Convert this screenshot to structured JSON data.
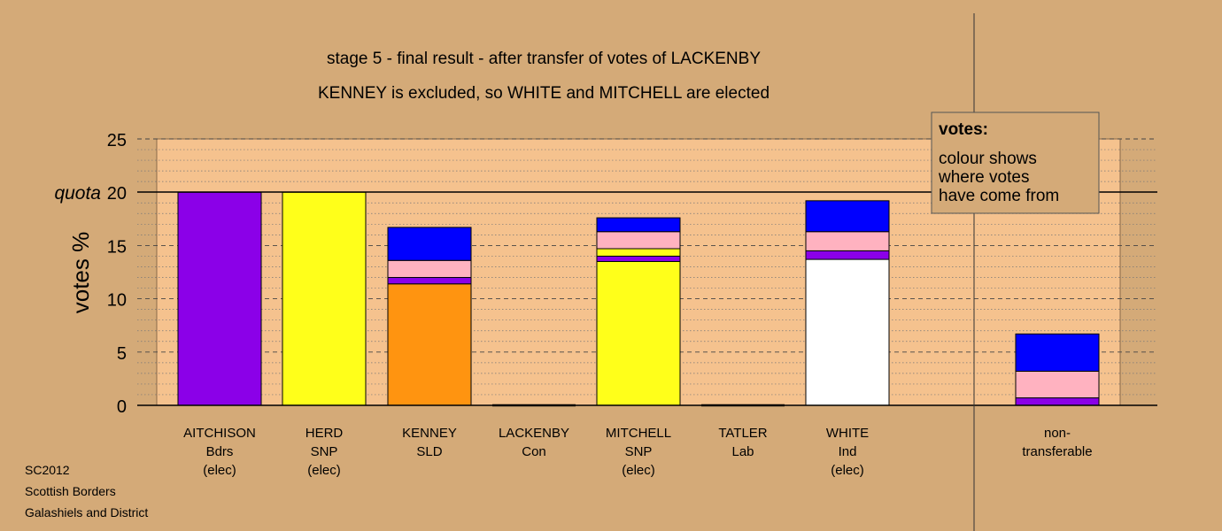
{
  "chart_data": {
    "type": "bar",
    "stacked": true,
    "title": "stage 5 - final result - after transfer of votes of LACKENBY",
    "subtitle": "KENNEY is excluded, so WHITE and MITCHELL are elected",
    "ylabel": "votes %",
    "ylim": [
      0,
      25
    ],
    "yticks": [
      "0",
      "5",
      "10",
      "15",
      "20",
      "25"
    ],
    "quota": 20,
    "quota_label": "quota",
    "grid": "dashed every 5, dotted every 1",
    "categories": [
      {
        "lines": [
          "AITCHISON",
          "Bdrs",
          "(elec)"
        ]
      },
      {
        "lines": [
          "HERD",
          "SNP",
          "(elec)"
        ]
      },
      {
        "lines": [
          "KENNEY",
          "SLD"
        ]
      },
      {
        "lines": [
          "LACKENBY",
          "Con"
        ]
      },
      {
        "lines": [
          "MITCHELL",
          "SNP",
          "(elec)"
        ]
      },
      {
        "lines": [
          "TATLER",
          "Lab"
        ]
      },
      {
        "lines": [
          "WHITE",
          "Ind",
          "(elec)"
        ]
      },
      {
        "lines": [
          "non-",
          "transferable"
        ]
      }
    ],
    "bars": [
      {
        "segments": [
          {
            "value": 20.0,
            "color": "#8B00E8"
          }
        ]
      },
      {
        "segments": [
          {
            "value": 20.0,
            "color": "#FFFF1A"
          }
        ]
      },
      {
        "segments": [
          {
            "value": 11.4,
            "color": "#FF9410"
          },
          {
            "value": 0.6,
            "color": "#8B00E8"
          },
          {
            "value": 1.6,
            "color": "#FFB2C0"
          },
          {
            "value": 3.1,
            "color": "#0000FF"
          }
        ]
      },
      {
        "segments": []
      },
      {
        "segments": [
          {
            "value": 13.5,
            "color": "#FFFF1A"
          },
          {
            "value": 0.5,
            "color": "#8B00E8"
          },
          {
            "value": 0.7,
            "color": "#FFFF1A"
          },
          {
            "value": 1.6,
            "color": "#FFB2C0"
          },
          {
            "value": 1.3,
            "color": "#0000FF"
          }
        ]
      },
      {
        "segments": []
      },
      {
        "segments": [
          {
            "value": 13.7,
            "color": "#FFFFFF"
          },
          {
            "value": 0.8,
            "color": "#8B00E8"
          },
          {
            "value": 1.8,
            "color": "#FFB2C0"
          },
          {
            "value": 2.9,
            "color": "#0000FF"
          }
        ]
      },
      {
        "segments": [
          {
            "value": 0.7,
            "color": "#8B00E8"
          },
          {
            "value": 2.5,
            "color": "#FFB2C0"
          },
          {
            "value": 3.5,
            "color": "#0000FF"
          }
        ]
      }
    ],
    "legend": {
      "title": "votes:",
      "lines": [
        "colour shows",
        "where votes",
        "have come from"
      ],
      "placement": "top-right"
    },
    "colors": {
      "background": "#D4AA78",
      "plot_area": "#F5C28E"
    }
  },
  "footer": {
    "lines": [
      "SC2012",
      "Scottish Borders",
      "Galashiels and District"
    ]
  }
}
